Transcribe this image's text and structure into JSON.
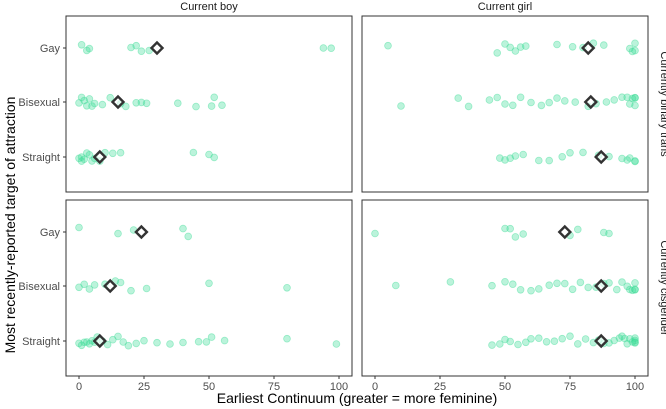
{
  "chart_data": {
    "type": "scatter",
    "xlabel": "Earliest Continuum (greater = more feminine)",
    "ylabel": "Most recently-reported target of attraction",
    "xlim": [
      -5,
      105
    ],
    "x_ticks": [
      0,
      25,
      50,
      75,
      100
    ],
    "categories": [
      "Gay",
      "Bisexual",
      "Straight"
    ],
    "col_facets": [
      "Current boy",
      "Current girl"
    ],
    "row_facets": [
      "Currently binary trans",
      "Currently cisgender"
    ],
    "colors": {
      "point": "#3ddc97",
      "mean_marker": "#333333",
      "frame": "#333333"
    },
    "grid": false,
    "panels": [
      {
        "col": "Current boy",
        "row": "Currently binary trans",
        "means": {
          "Gay": 30,
          "Bisexual": 15,
          "Straight": 8
        },
        "points": {
          "Gay": [
            1,
            3,
            4,
            20,
            22,
            24,
            27,
            94,
            97
          ],
          "Bisexual": [
            0,
            1,
            2,
            3,
            4,
            5,
            6,
            9,
            12,
            16,
            18,
            22,
            24,
            26,
            38,
            45,
            51,
            52,
            55
          ],
          "Straight": [
            0,
            1,
            1,
            2,
            3,
            4,
            5,
            6,
            8,
            10,
            13,
            16,
            44,
            50,
            52
          ]
        }
      },
      {
        "col": "Current girl",
        "row": "Currently binary trans",
        "means": {
          "Gay": 82,
          "Bisexual": 83,
          "Straight": 87
        },
        "points": {
          "Gay": [
            5,
            47,
            50,
            52,
            54,
            56,
            58,
            70,
            76,
            80,
            84,
            88,
            98,
            99,
            100,
            100
          ],
          "Bisexual": [
            10,
            32,
            36,
            44,
            47,
            50,
            53,
            56,
            60,
            64,
            67,
            70,
            73,
            77,
            82,
            85,
            89,
            92,
            95,
            97,
            98,
            99,
            100,
            100,
            100
          ],
          "Straight": [
            48,
            50,
            52,
            54,
            57,
            63,
            67,
            72,
            75,
            80,
            86,
            90,
            95,
            97,
            98,
            100,
            100
          ]
        }
      },
      {
        "col": "Current boy",
        "row": "Currently cisgender",
        "means": {
          "Gay": 24,
          "Bisexual": 12,
          "Straight": 8
        },
        "points": {
          "Gay": [
            0,
            15,
            21,
            40,
            42
          ],
          "Bisexual": [
            0,
            2,
            4,
            6,
            10,
            14,
            16,
            20,
            26,
            50,
            80
          ],
          "Straight": [
            0,
            1,
            2,
            3,
            4,
            5,
            6,
            7,
            9,
            11,
            13,
            15,
            17,
            19,
            22,
            25,
            30,
            35,
            40,
            46,
            49,
            51,
            56,
            80,
            99
          ]
        }
      },
      {
        "col": "Current girl",
        "row": "Currently cisgender",
        "means": {
          "Gay": 73,
          "Bisexual": 87,
          "Straight": 87
        },
        "points": {
          "Gay": [
            0,
            50,
            52,
            54,
            57,
            75,
            78,
            88,
            90
          ],
          "Bisexual": [
            8,
            29,
            45,
            50,
            53,
            56,
            60,
            63,
            67,
            70,
            73,
            76,
            79,
            82,
            85,
            88,
            90,
            93,
            95,
            97,
            98,
            99,
            100,
            100,
            100
          ],
          "Straight": [
            45,
            48,
            50,
            52,
            55,
            58,
            60,
            63,
            66,
            69,
            72,
            75,
            78,
            81,
            84,
            86,
            88,
            90,
            92,
            94,
            95,
            96,
            97,
            98,
            99,
            100,
            100,
            100,
            100
          ]
        }
      }
    ]
  }
}
